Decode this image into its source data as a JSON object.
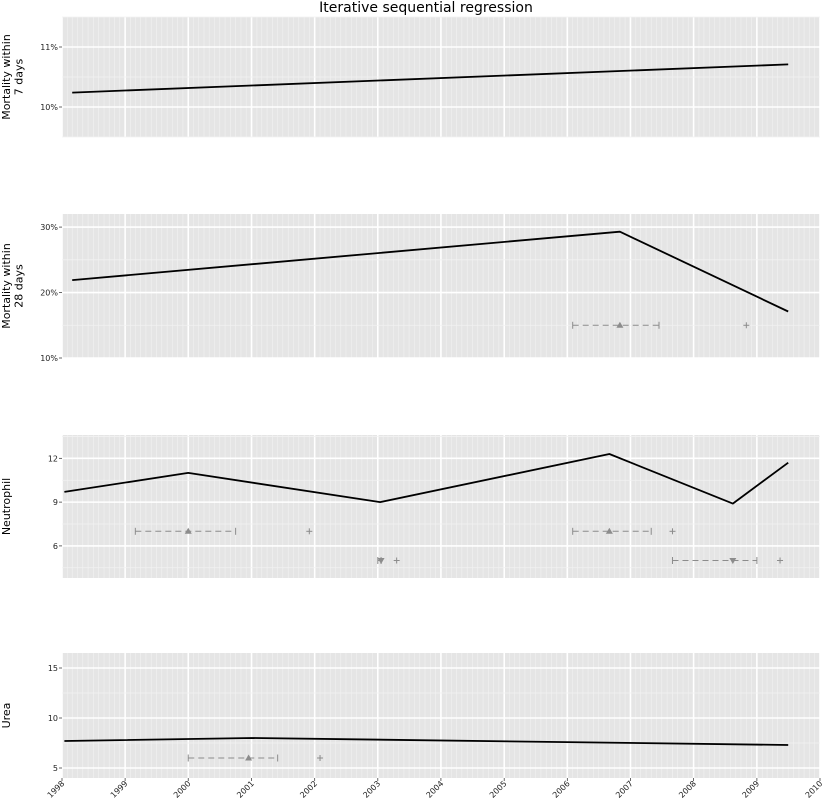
{
  "chart_data": {
    "type": "line",
    "title": "Iterative sequential regression",
    "x_range": [
      "1998-01-01",
      "2010-01-01"
    ],
    "x_ticks": [
      "1998",
      "1999",
      "2000",
      "2001",
      "2002",
      "2003",
      "2004",
      "2005",
      "2006",
      "2007",
      "2008",
      "2009",
      "2010"
    ],
    "grid": true,
    "panels": [
      {
        "ylabel": "Mortality within\n7 days",
        "ylim": [
          9.5,
          11.5
        ],
        "yticks": [
          {
            "v": 10,
            "label": "10%"
          },
          {
            "v": 11,
            "label": "11%"
          }
        ],
        "line": [
          {
            "x": "1998-03-01",
            "y": 10.24
          },
          {
            "x": "2009-07-01",
            "y": 10.71
          }
        ],
        "markers": []
      },
      {
        "ylabel": "Mortality within\n28 days",
        "ylim": [
          10,
          32
        ],
        "yticks": [
          {
            "v": 10,
            "label": "10%"
          },
          {
            "v": 20,
            "label": "20%"
          },
          {
            "v": 30,
            "label": "30%"
          }
        ],
        "line": [
          {
            "x": "1998-03-01",
            "y": 21.9
          },
          {
            "x": "2006-11-01",
            "y": 29.3
          },
          {
            "x": "2009-07-01",
            "y": 17.1
          }
        ],
        "markers": [
          {
            "y": 15,
            "lo": "2006-02-01",
            "est": "2006-11-01",
            "hi": "2007-06-15",
            "plus": "2008-11-01",
            "dir": "up"
          }
        ]
      },
      {
        "ylabel": "Neutrophil",
        "ylim": [
          3.8,
          13.6
        ],
        "yticks": [
          {
            "v": 6,
            "label": "6"
          },
          {
            "v": 9,
            "label": "9"
          },
          {
            "v": 12,
            "label": "12"
          }
        ],
        "line": [
          {
            "x": "1998-01-15",
            "y": 9.7
          },
          {
            "x": "2000-01-01",
            "y": 11.0
          },
          {
            "x": "2003-01-15",
            "y": 9.0
          },
          {
            "x": "2006-09-01",
            "y": 12.3
          },
          {
            "x": "2008-08-15",
            "y": 8.9
          },
          {
            "x": "2009-07-01",
            "y": 11.7
          }
        ],
        "markers": [
          {
            "y": 7.0,
            "lo": "1999-03-01",
            "est": "2000-01-01",
            "hi": "2000-10-01",
            "plus": "2001-12-01",
            "dir": "up"
          },
          {
            "y": 5.0,
            "lo": "2003-01-01",
            "est": "2003-01-20",
            "hi": "2003-01-20",
            "plus": "2003-04-20",
            "dir": "down"
          },
          {
            "y": 7.0,
            "lo": "2006-02-01",
            "est": "2006-09-01",
            "hi": "2007-05-01",
            "plus": "2007-09-01",
            "dir": "up"
          },
          {
            "y": 5.0,
            "lo": "2007-09-01",
            "est": "2008-08-15",
            "hi": "2009-01-01",
            "plus": "2009-05-15",
            "dir": "down"
          }
        ]
      },
      {
        "ylabel": "Urea",
        "ylim": [
          4.0,
          16.5
        ],
        "yticks": [
          {
            "v": 5,
            "label": "5"
          },
          {
            "v": 10,
            "label": "10"
          },
          {
            "v": 15,
            "label": "15"
          }
        ],
        "line": [
          {
            "x": "1998-01-15",
            "y": 7.7
          },
          {
            "x": "2001-01-01",
            "y": 8.0
          },
          {
            "x": "2009-07-01",
            "y": 7.3
          }
        ],
        "markers": [
          {
            "y": 6.0,
            "lo": "2000-01-01",
            "est": "2000-12-15",
            "hi": "2001-06-01",
            "plus": "2002-02-01",
            "dir": "up"
          }
        ]
      }
    ]
  }
}
